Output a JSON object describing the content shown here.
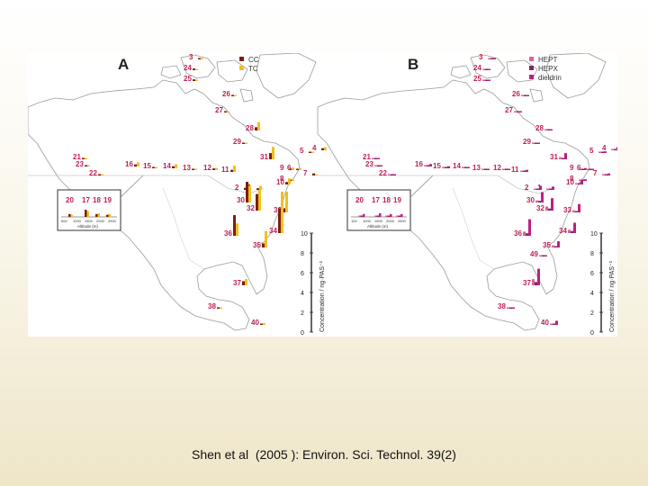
{
  "figure": {
    "panel_a": {
      "letter": "A",
      "legend": [
        {
          "label": "CC",
          "color": "#7a1f10"
        },
        {
          "label": "TC",
          "color": "#f0c020"
        }
      ],
      "sites": [
        {
          "id": "3",
          "values": [
            0.2,
            0.1
          ]
        },
        {
          "id": "24",
          "values": [
            0.4,
            0.2
          ]
        },
        {
          "id": "25",
          "values": [
            0.4,
            0.2
          ]
        },
        {
          "id": "26",
          "values": [
            0.2,
            0.1
          ]
        },
        {
          "id": "27",
          "values": [
            0.3,
            0.2
          ]
        },
        {
          "id": "28",
          "values": [
            0.8,
            2.0
          ]
        },
        {
          "id": "29",
          "values": [
            0.3,
            0.2
          ]
        },
        {
          "id": "4",
          "values": [
            0.5,
            0.8
          ]
        },
        {
          "id": "5",
          "values": [
            0.3,
            0.3
          ]
        },
        {
          "id": "31",
          "values": [
            1.5,
            3.0
          ]
        },
        {
          "id": "16",
          "values": [
            0.5,
            1.0
          ]
        },
        {
          "id": "15",
          "values": [
            0.3,
            0.2
          ]
        },
        {
          "id": "14",
          "values": [
            0.5,
            1.0
          ]
        },
        {
          "id": "13",
          "values": [
            0.2,
            0.2
          ]
        },
        {
          "id": "12",
          "values": [
            0.4,
            0.5
          ]
        },
        {
          "id": "11",
          "values": [
            0.5,
            1.5
          ]
        },
        {
          "id": "9",
          "values": [
            0.3,
            0.6
          ]
        },
        {
          "id": "6",
          "values": [
            0.3,
            0.5
          ]
        },
        {
          "id": "7",
          "values": [
            0.5,
            0.3
          ]
        },
        {
          "id": "8",
          "values": [
            0.3,
            0.3
          ]
        },
        {
          "id": "10",
          "values": [
            0.6,
            1.5
          ]
        },
        {
          "id": "21",
          "values": [
            0.2,
            0.2
          ]
        },
        {
          "id": "23",
          "values": [
            0.2,
            0.1
          ]
        },
        {
          "id": "22",
          "values": [
            0.2,
            0.1
          ]
        },
        {
          "id": "2",
          "values": [
            0.5,
            1.5
          ]
        },
        {
          "id": "1",
          "values": [
            0.4,
            1.0
          ]
        },
        {
          "id": "30",
          "values": [
            5.0,
            4.0
          ]
        },
        {
          "id": "32",
          "values": [
            4.0,
            5.0
          ]
        },
        {
          "id": "33",
          "values": [
            1.0,
            5.0
          ]
        },
        {
          "id": "36",
          "values": [
            5.0,
            3.0
          ]
        },
        {
          "id": "34",
          "values": [
            6.0,
            10.0
          ]
        },
        {
          "id": "35",
          "values": [
            1.0,
            4.0
          ]
        },
        {
          "id": "37",
          "values": [
            1.0,
            1.5
          ]
        },
        {
          "id": "38",
          "values": [
            0.2,
            0.3
          ]
        },
        {
          "id": "40",
          "values": [
            0.3,
            0.4
          ]
        }
      ],
      "inset_sites": [
        {
          "id": "20",
          "values": [
            0.4,
            0.3
          ]
        },
        {
          "id": "17",
          "values": [
            1.0,
            0.8
          ]
        },
        {
          "id": "18",
          "values": [
            0.4,
            0.5
          ]
        },
        {
          "id": "19",
          "values": [
            0.3,
            0.4
          ]
        }
      ],
      "inset_ticks": [
        "500",
        "1000",
        "1500",
        "2000",
        "2500"
      ],
      "inset_xlabel": "Altitude (m)",
      "scale_ticks": [
        "0",
        "2",
        "4",
        "6",
        "8",
        "10"
      ],
      "scale_label": "Concentration / ng·PAS⁻¹"
    },
    "panel_b": {
      "letter": "B",
      "legend": [
        {
          "label": "HEPT",
          "color": "#e0609a"
        },
        {
          "label": "HEPX",
          "color": "#7a2a6a"
        },
        {
          "label": "dieldrin",
          "color": "#c01e80"
        }
      ],
      "sites": [
        {
          "id": "3",
          "values": [
            0.1,
            0.1,
            0.2
          ]
        },
        {
          "id": "24",
          "values": [
            0.1,
            0.1,
            0.3
          ]
        },
        {
          "id": "25",
          "values": [
            0.1,
            0.1,
            0.2
          ]
        },
        {
          "id": "26",
          "values": [
            0.1,
            0.1,
            0.2
          ]
        },
        {
          "id": "27",
          "values": [
            0.1,
            0.1,
            0.3
          ]
        },
        {
          "id": "28",
          "values": [
            0.1,
            0.1,
            0.2
          ]
        },
        {
          "id": "29",
          "values": [
            0.1,
            0.1,
            0.3
          ]
        },
        {
          "id": "4",
          "values": [
            0.2,
            0.1,
            0.8
          ]
        },
        {
          "id": "5",
          "values": [
            0.1,
            0.1,
            0.4
          ]
        },
        {
          "id": "31",
          "values": [
            0.5,
            0.3,
            1.5
          ]
        },
        {
          "id": "16",
          "values": [
            0.1,
            0.1,
            0.6
          ]
        },
        {
          "id": "15",
          "values": [
            0.1,
            0.1,
            0.5
          ]
        },
        {
          "id": "14",
          "values": [
            0.1,
            0.1,
            0.3
          ]
        },
        {
          "id": "13",
          "values": [
            0.1,
            0.1,
            0.2
          ]
        },
        {
          "id": "12",
          "values": [
            0.1,
            0.1,
            0.3
          ]
        },
        {
          "id": "11",
          "values": [
            0.2,
            0.2,
            0.5
          ]
        },
        {
          "id": "9",
          "values": [
            0.1,
            0.1,
            0.5
          ]
        },
        {
          "id": "6",
          "values": [
            0.1,
            0.1,
            0.3
          ]
        },
        {
          "id": "7",
          "values": [
            0.1,
            0.1,
            0.5
          ]
        },
        {
          "id": "8",
          "values": [
            0.1,
            0.1,
            0.4
          ]
        },
        {
          "id": "10",
          "values": [
            0.3,
            0.2,
            1.0
          ]
        },
        {
          "id": "21",
          "values": [
            0.1,
            0.1,
            0.2
          ]
        },
        {
          "id": "23",
          "values": [
            0.1,
            0.1,
            0.2
          ]
        },
        {
          "id": "22",
          "values": [
            0.1,
            0.1,
            0.2
          ]
        },
        {
          "id": "2",
          "values": [
            0.2,
            0.2,
            1.0
          ]
        },
        {
          "id": "1",
          "values": [
            0.2,
            0.1,
            0.8
          ]
        },
        {
          "id": "30",
          "values": [
            0.5,
            0.4,
            2.5
          ]
        },
        {
          "id": "32",
          "values": [
            1.0,
            0.5,
            3.0
          ]
        },
        {
          "id": "33",
          "values": [
            0.5,
            0.3,
            2.0
          ]
        },
        {
          "id": "36",
          "values": [
            1.0,
            0.6,
            4.0
          ]
        },
        {
          "id": "34",
          "values": [
            0.8,
            0.5,
            2.5
          ]
        },
        {
          "id": "35",
          "values": [
            0.5,
            0.3,
            1.5
          ]
        },
        {
          "id": "49",
          "values": [
            0.1,
            0.1,
            0.2
          ]
        },
        {
          "id": "37",
          "values": [
            1.5,
            0.8,
            4.0
          ]
        },
        {
          "id": "38",
          "values": [
            0.1,
            0.1,
            0.3
          ]
        },
        {
          "id": "40",
          "values": [
            0.3,
            0.2,
            1.0
          ]
        }
      ],
      "inset_sites": [
        {
          "id": "20",
          "values": [
            0.1,
            0.1,
            0.4
          ]
        },
        {
          "id": "17",
          "values": [
            0.1,
            0.1,
            0.5
          ]
        },
        {
          "id": "18",
          "values": [
            0.1,
            0.1,
            0.4
          ]
        },
        {
          "id": "19",
          "values": [
            0.1,
            0.1,
            0.4
          ]
        }
      ],
      "inset_ticks": [
        "100",
        "1000",
        "1500",
        "2000",
        "2500"
      ],
      "inset_xlabel": "Altitude (m)",
      "scale_ticks": [
        "0",
        "2",
        "4",
        "6",
        "8",
        "10"
      ],
      "scale_label": "Concentration / ng·PAS⁻¹"
    }
  },
  "caption": {
    "authors": "Shen et al",
    "year_open": "(",
    "year": "2005",
    "year_close": "):",
    "journal": "Environ. Sci. Technol.",
    "volume": "39",
    "issue": "(2)"
  }
}
